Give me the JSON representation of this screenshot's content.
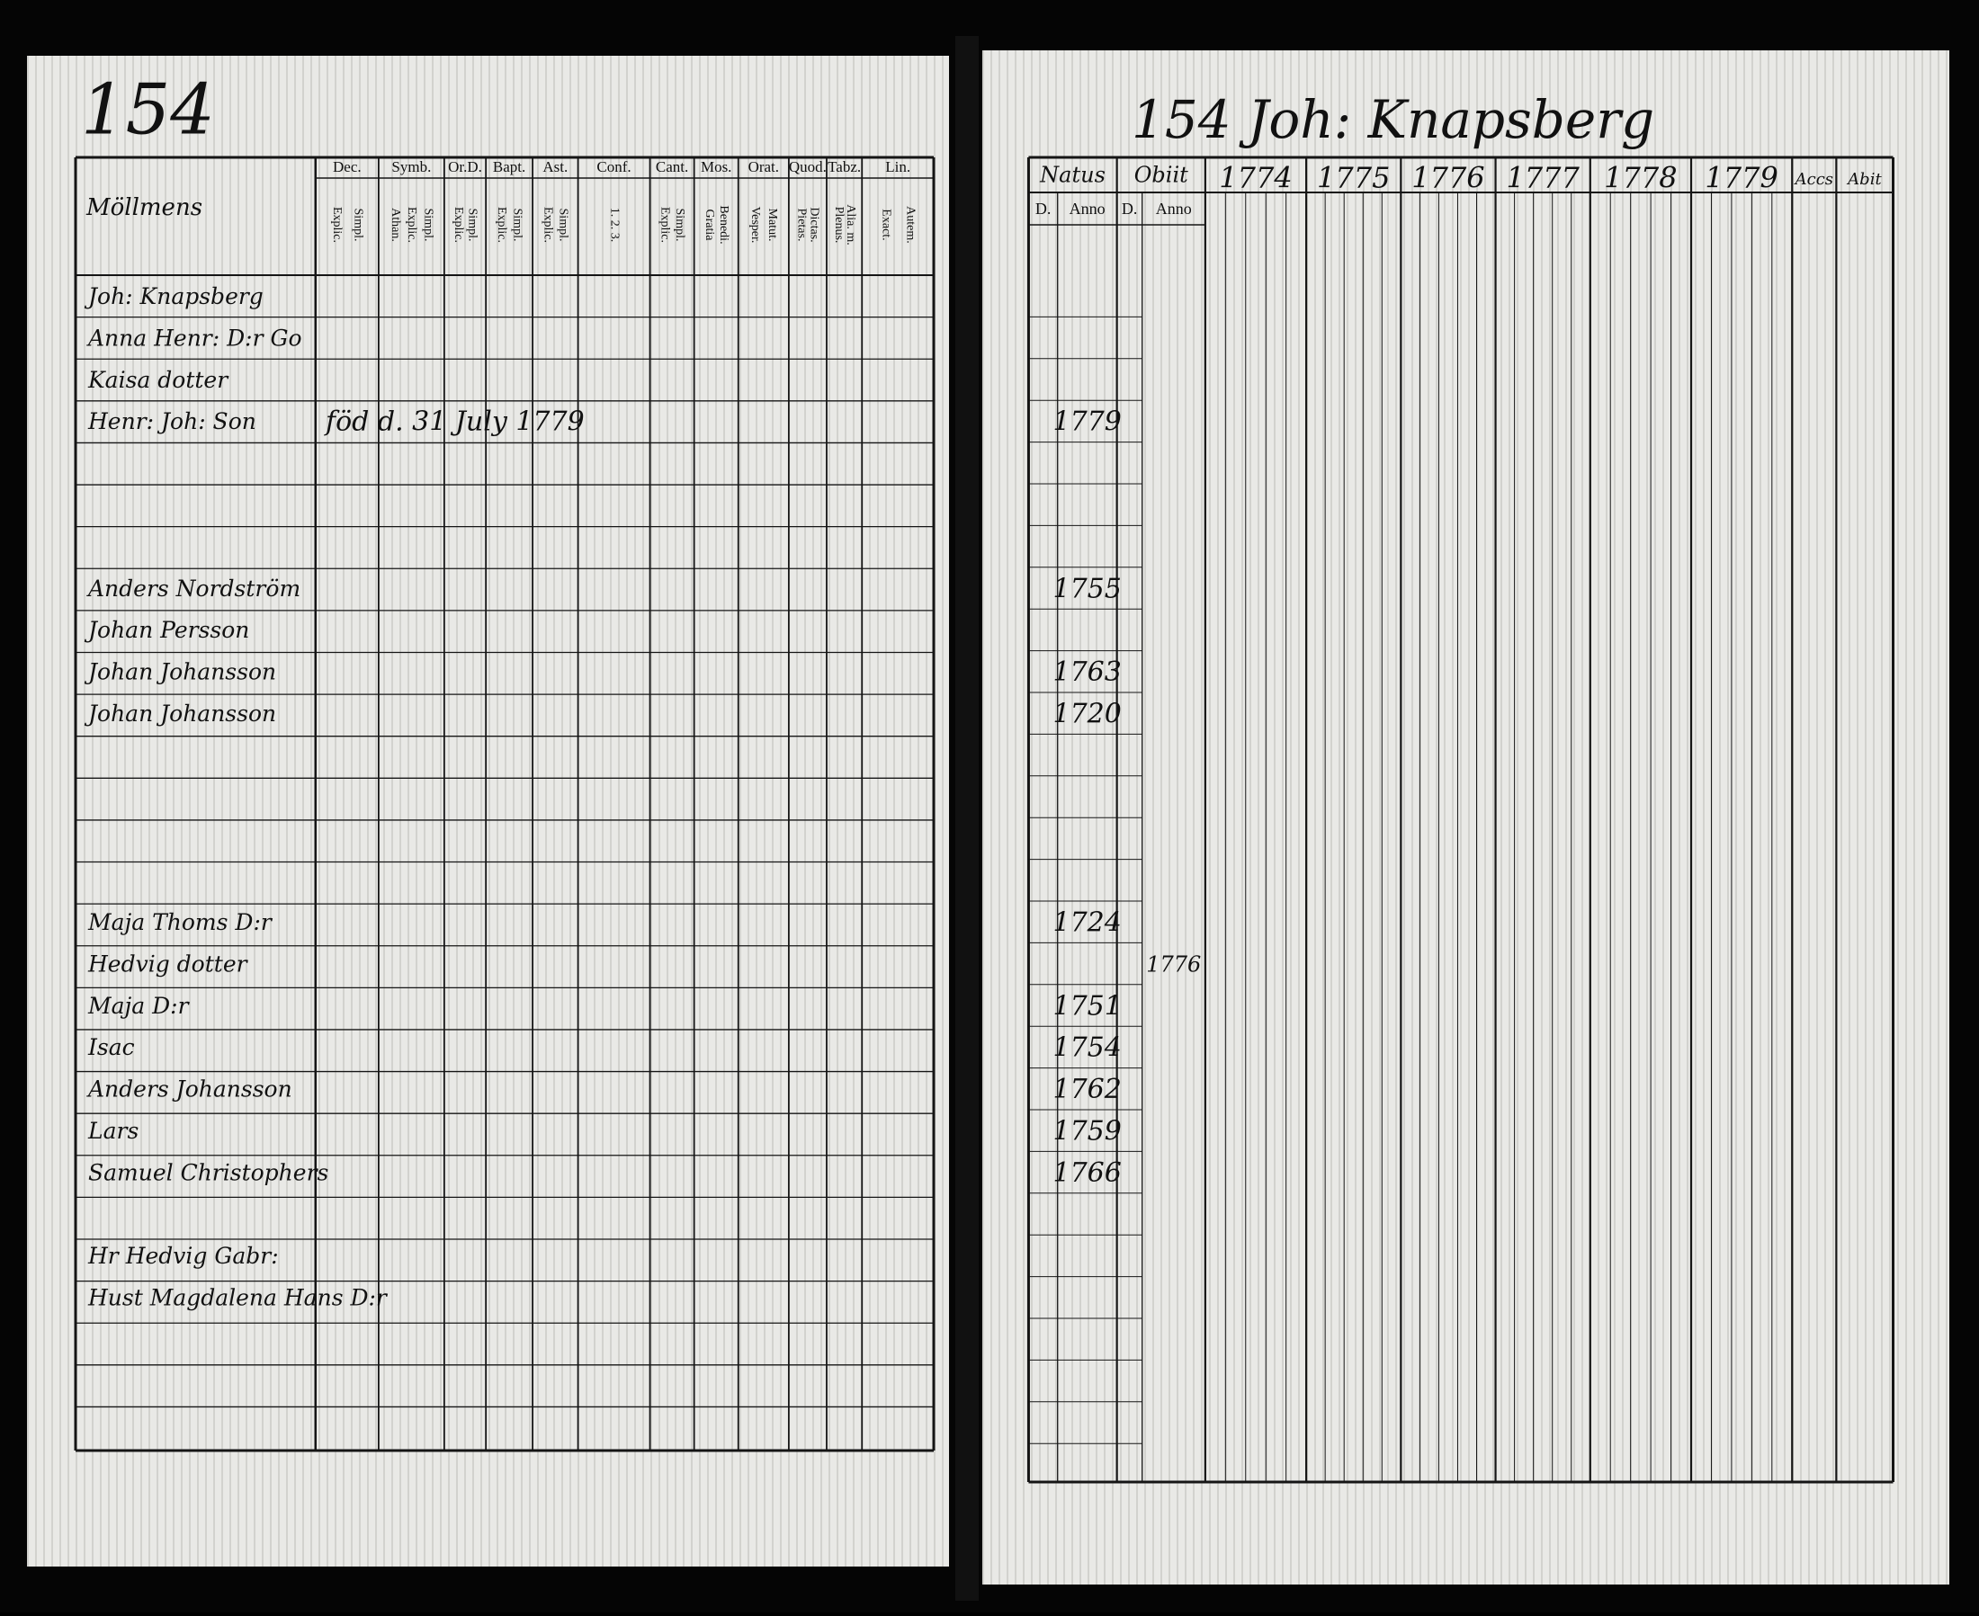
{
  "left_page": {
    "number": "154",
    "heading": "Möllmens",
    "note": "föd d. 31 July 1779",
    "columns": [
      {
        "header": "Dec.",
        "sub": [
          "Explic.",
          "Simpl."
        ]
      },
      {
        "header": "Symb.",
        "sub": [
          "Athan.",
          "Explic.",
          "Simpl."
        ]
      },
      {
        "header": "Or.D.",
        "sub": [
          "Explic.",
          "Simpl."
        ]
      },
      {
        "header": "Bapt.",
        "sub": [
          "Explic.",
          "Simpl."
        ]
      },
      {
        "header": "Ast.",
        "sub": [
          "Explic.",
          "Simpl."
        ]
      },
      {
        "header": "Conf.",
        "sub": [
          "1. 2. 3."
        ]
      },
      {
        "header": "Cant.",
        "sub": [
          "Explic.",
          "Simpl."
        ]
      },
      {
        "header": "Mos.",
        "sub": [
          "Gratia",
          "Benedi."
        ]
      },
      {
        "header": "Orat.",
        "sub": [
          "Vesper.",
          "Matut."
        ]
      },
      {
        "header": "Quod.",
        "sub": [
          "Pietas.",
          "Dictas."
        ]
      },
      {
        "header": "Tabz.",
        "sub": [
          "Plenus.",
          "Alia. m."
        ]
      },
      {
        "header": "Lin.",
        "sub": [
          "Exact.",
          "Autem."
        ]
      }
    ]
  },
  "right_page": {
    "title": "154 Joh: Knapsberg",
    "natus": "Natus",
    "obiit": "Obiit",
    "day": "D.",
    "year": "Anno",
    "years": [
      "1774",
      "1775",
      "1776",
      "1777",
      "1778",
      "1779"
    ],
    "accs": "Accs",
    "abit": "Abit"
  },
  "people": [
    {
      "name": "Joh: Knapsberg"
    },
    {
      "name": "Anna Henr: D:r Go"
    },
    {
      "name": "Kaisa dotter"
    },
    {
      "name": "Henr: Joh: Son",
      "born": "1779"
    },
    {
      "name": "Anders Nordström",
      "born": "1755"
    },
    {
      "name": "Johan Persson"
    },
    {
      "name": "Johan Johansson",
      "born": "1763"
    },
    {
      "name": "Johan Johansson",
      "born": "1720"
    },
    {
      "name": "Maja Thoms D:r",
      "born": "1724"
    },
    {
      "name": "Hedvig dotter",
      "died": "1776"
    },
    {
      "name": "Maja D:r",
      "born": "1751"
    },
    {
      "name": "Isac",
      "born": "1754"
    },
    {
      "name": "Anders Johansson",
      "born": "1762"
    },
    {
      "name": "Lars",
      "born": "1759"
    },
    {
      "name": "Samuel Christophers",
      "born": "1766"
    },
    {
      "name": "Hr Hedvig Gabr:"
    },
    {
      "name": "Hust Magdalena Hans D:r"
    }
  ]
}
